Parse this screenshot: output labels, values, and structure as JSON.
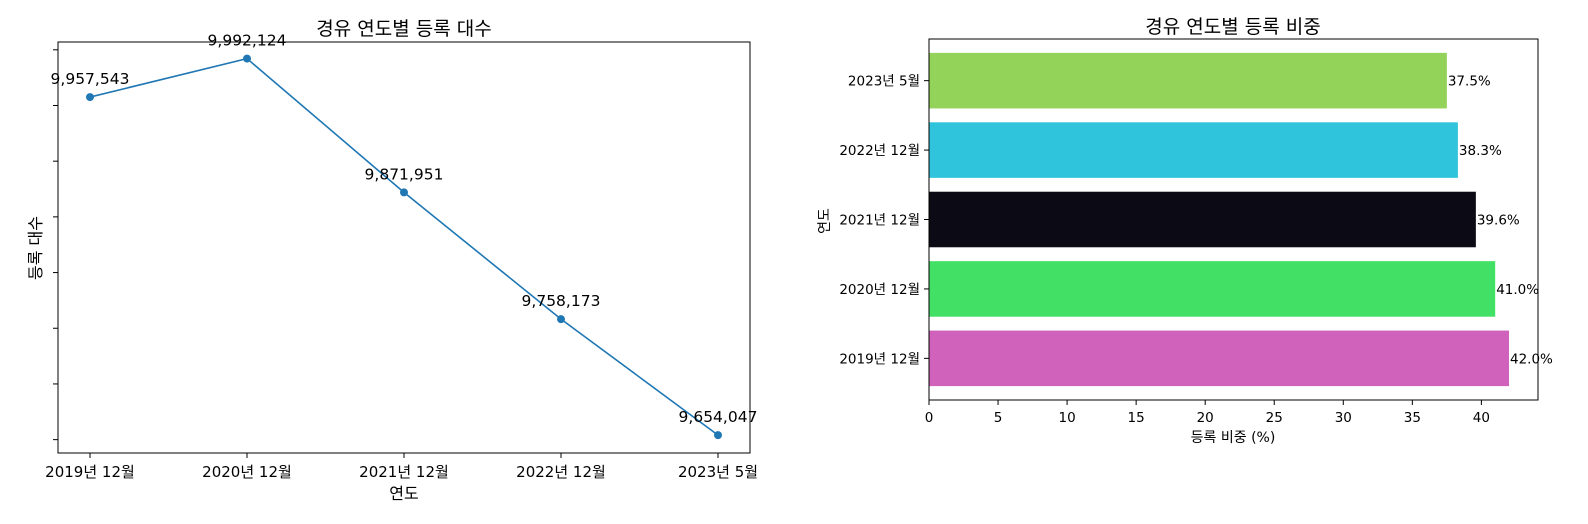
{
  "chart_data": [
    {
      "type": "line",
      "title": "경유 연도별 등록 대수",
      "xlabel": "연도",
      "ylabel": "등록 대수",
      "categories": [
        "2019년 12월",
        "2020년 12월",
        "2021년 12월",
        "2022년 12월",
        "2023년 5월"
      ],
      "values": [
        9957543,
        9992124,
        9871951,
        9758173,
        9654047
      ],
      "data_labels": [
        "9,957,543",
        "9,992,124",
        "9,871,951",
        "9,758,173",
        "9,654,047"
      ],
      "ylim": [
        9638000,
        10007000
      ],
      "yticks": [
        9650000,
        9700000,
        9750000,
        9800000,
        9850000,
        9900000,
        9950000,
        10000000
      ],
      "ytick_labels_shown": false,
      "color": "#1f77b4",
      "grid": false
    },
    {
      "type": "bar",
      "orientation": "horizontal",
      "title": "경유 연도별 등록 비중",
      "xlabel": "등록 비중 (%)",
      "ylabel": "연도",
      "categories": [
        "2019년 12월",
        "2020년 12월",
        "2021년 12월",
        "2022년 12월",
        "2023년 5월"
      ],
      "values": [
        42.0,
        41.0,
        39.6,
        38.3,
        37.5
      ],
      "data_labels": [
        "42.0%",
        "41.0%",
        "39.6%",
        "38.3%",
        "37.5%"
      ],
      "colors": [
        "#d062bc",
        "#42e166",
        "#0b0a15",
        "#2fc4db",
        "#93d35a"
      ],
      "xlim": [
        0,
        44.1
      ],
      "xticks": [
        0,
        5,
        10,
        15,
        20,
        25,
        30,
        35,
        40
      ],
      "grid": false
    }
  ]
}
